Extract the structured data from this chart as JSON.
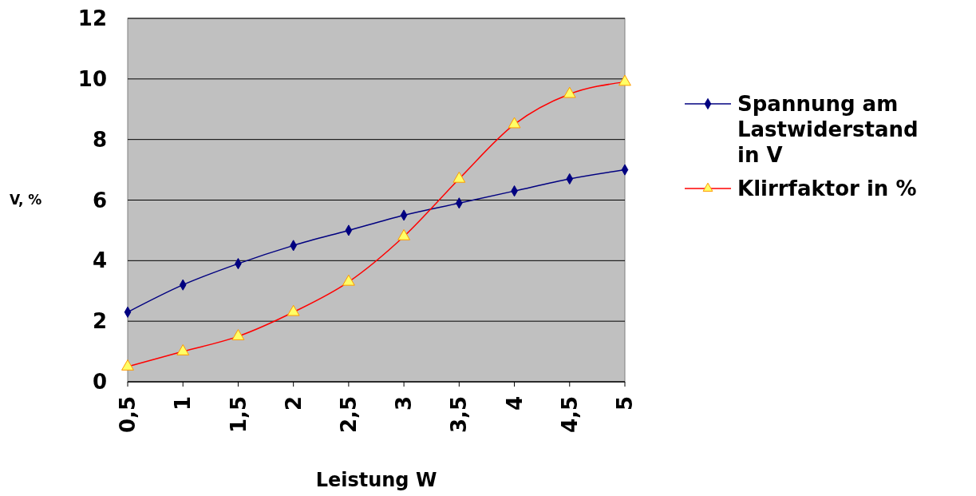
{
  "chart_data": {
    "type": "line",
    "xlabel": "Leistung W",
    "ylabel": "V, %",
    "categories": [
      "0,5",
      "1",
      "1,5",
      "2",
      "2,5",
      "3",
      "3,5",
      "4",
      "4,5",
      "5"
    ],
    "series": [
      {
        "name": "Spannung am Lastwiderstand in V",
        "color": "#000080",
        "marker": "diamond",
        "values": [
          2.3,
          3.2,
          3.9,
          4.5,
          5.0,
          5.5,
          5.9,
          6.3,
          6.7,
          7.0
        ]
      },
      {
        "name": "Klirrfaktor in %",
        "color": "#ff0000",
        "marker": "triangle",
        "values": [
          0.5,
          1.0,
          1.5,
          2.3,
          3.3,
          4.8,
          6.7,
          8.5,
          9.5,
          9.9
        ]
      }
    ],
    "ylim": [
      0,
      12
    ],
    "yticks": [
      0,
      2,
      4,
      6,
      8,
      10,
      12
    ],
    "grid": "y",
    "legend": "right"
  }
}
